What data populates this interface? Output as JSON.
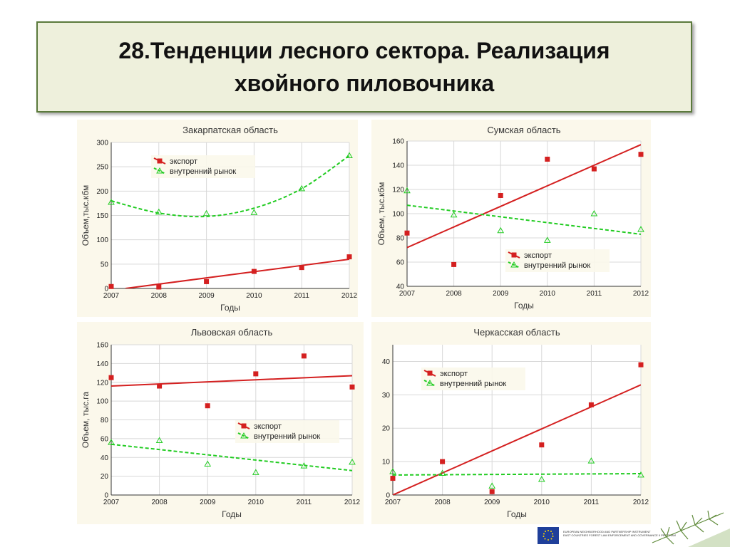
{
  "page": {
    "title_line1": "28.Тенденции лесного сектора. Реализация",
    "title_line2": "хвойного пиловочника"
  },
  "footer": {
    "program_line1": "EUROPEAN NEIGHBORHOOD AND PARTNERSHIP INSTRUMENT",
    "program_line2": "EAST COUNTRIES FOREST LAW ENFORCEMENT AND GOVERNANCE II PROGRAM"
  },
  "colors": {
    "export": "#d42020",
    "domestic": "#22cc22",
    "grid": "#d8d8d8",
    "panel_bg": "#fbf8eb",
    "title_border": "#5b7a3c",
    "title_bg": "#eef0dc"
  },
  "chart_data": [
    {
      "type": "scatter",
      "title": "Закарпатская область",
      "xlabel": "Годы",
      "ylabel": "Объем,тыс.кбм",
      "xlim": [
        2007,
        2012
      ],
      "ylim": [
        0,
        300
      ],
      "xticks": [
        2007,
        2008,
        2009,
        2010,
        2011,
        2012
      ],
      "yticks": [
        0,
        50,
        100,
        150,
        200,
        250,
        300
      ],
      "grid": true,
      "legend_position": "top-left",
      "series": [
        {
          "name": "экспорт",
          "marker": "square",
          "fit": "linear",
          "x": [
            2007,
            2008,
            2009,
            2010,
            2011,
            2012
          ],
          "y": [
            4,
            3,
            14,
            35,
            43,
            65
          ],
          "trend": [
            [
              2007.3,
              0
            ],
            [
              2012,
              60
            ]
          ]
        },
        {
          "name": "внутренний рынок",
          "marker": "triangle",
          "fit": "quadratic",
          "x": [
            2007,
            2008,
            2009,
            2010,
            2011,
            2012
          ],
          "y": [
            177,
            157,
            154,
            156,
            205,
            273
          ],
          "trend": [
            [
              2007,
              180
            ],
            [
              2008,
              155
            ],
            [
              2009,
              148
            ],
            [
              2010,
              165
            ],
            [
              2011,
              205
            ],
            [
              2012,
              273
            ]
          ]
        }
      ]
    },
    {
      "type": "scatter",
      "title": "Сумская область",
      "xlabel": "Годы",
      "ylabel": "Объем, тыс.кбм",
      "xlim": [
        2007,
        2012
      ],
      "ylim": [
        40,
        160
      ],
      "xticks": [
        2007,
        2008,
        2009,
        2010,
        2011,
        2012
      ],
      "yticks": [
        40,
        60,
        80,
        100,
        120,
        140,
        160
      ],
      "grid": true,
      "legend_position": "bottom-right",
      "series": [
        {
          "name": "экспорт",
          "marker": "square",
          "fit": "linear",
          "x": [
            2007,
            2008,
            2009,
            2010,
            2011,
            2012
          ],
          "y": [
            84,
            58,
            115,
            145,
            137,
            149
          ],
          "trend": [
            [
              2007,
              72
            ],
            [
              2012,
              157
            ]
          ]
        },
        {
          "name": "внутренний рынок",
          "marker": "triangle",
          "fit": "linear",
          "x": [
            2007,
            2008,
            2009,
            2010,
            2011,
            2012
          ],
          "y": [
            119,
            99,
            86,
            78,
            100,
            87
          ],
          "trend": [
            [
              2007,
              107
            ],
            [
              2012,
              83
            ]
          ]
        }
      ]
    },
    {
      "type": "scatter",
      "title": "Львовская область",
      "xlabel": "Годы",
      "ylabel": "Объем, тыс.га",
      "xlim": [
        2007,
        2012
      ],
      "ylim": [
        0,
        160
      ],
      "xticks": [
        2007,
        2008,
        2009,
        2010,
        2011,
        2012
      ],
      "yticks": [
        0,
        20,
        40,
        60,
        80,
        100,
        120,
        140,
        160
      ],
      "grid": true,
      "legend_position": "center-right",
      "series": [
        {
          "name": "экспорт",
          "marker": "square",
          "fit": "linear",
          "x": [
            2007,
            2008,
            2009,
            2010,
            2011,
            2012
          ],
          "y": [
            125,
            116,
            95,
            129,
            148,
            115
          ],
          "trend": [
            [
              2007,
              116
            ],
            [
              2012,
              127
            ]
          ]
        },
        {
          "name": "внутренний рынок",
          "marker": "triangle",
          "fit": "linear",
          "x": [
            2007,
            2008,
            2009,
            2010,
            2011,
            2012
          ],
          "y": [
            56,
            58,
            33,
            24,
            31,
            35
          ],
          "trend": [
            [
              2007,
              54
            ],
            [
              2012,
              26
            ]
          ]
        }
      ]
    },
    {
      "type": "scatter",
      "title": "Черкасская область",
      "xlabel": "Годы",
      "ylabel": "Объем, тыс.га",
      "xlim": [
        2007,
        2012
      ],
      "ylim": [
        0,
        45
      ],
      "xticks": [
        2007,
        2008,
        2009,
        2010,
        2011,
        2012
      ],
      "yticks": [
        0,
        10,
        20,
        30,
        40
      ],
      "grid": true,
      "legend_position": "top-left",
      "series": [
        {
          "name": "экспорт",
          "marker": "square",
          "fit": "linear",
          "x": [
            2007,
            2008,
            2009,
            2010,
            2011,
            2012
          ],
          "y": [
            5,
            10,
            1,
            15,
            27,
            39
          ],
          "trend": [
            [
              2007,
              0
            ],
            [
              2012,
              33
            ]
          ]
        },
        {
          "name": "внутренний рынок",
          "marker": "triangle",
          "fit": "linear",
          "x": [
            2007,
            2008,
            2009,
            2010,
            2011,
            2012
          ],
          "y": [
            7,
            6.5,
            2.7,
            4.7,
            10.2,
            6
          ],
          "trend": [
            [
              2007,
              6
            ],
            [
              2012,
              6.4
            ]
          ]
        }
      ]
    }
  ]
}
